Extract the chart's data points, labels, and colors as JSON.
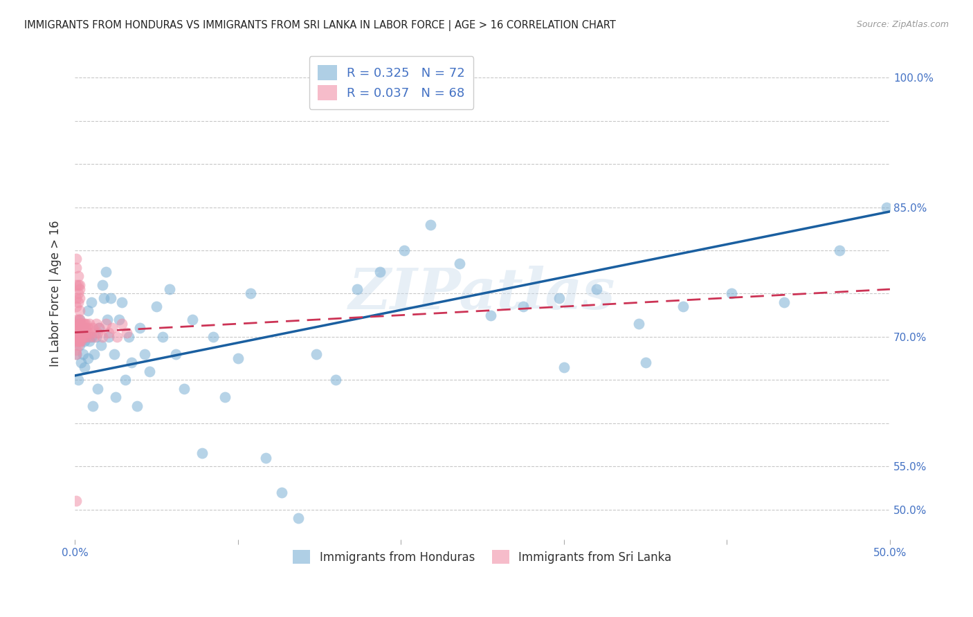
{
  "title": "IMMIGRANTS FROM HONDURAS VS IMMIGRANTS FROM SRI LANKA IN LABOR FORCE | AGE > 16 CORRELATION CHART",
  "source": "Source: ZipAtlas.com",
  "ylabel": "In Labor Force | Age > 16",
  "xlim": [
    0.0,
    0.5
  ],
  "ylim": [
    0.465,
    1.035
  ],
  "series1_name": "Immigrants from Honduras",
  "series1_color": "#7bafd4",
  "series2_name": "Immigrants from Sri Lanka",
  "series2_color": "#f090a8",
  "blue_line_color": "#1a5fa0",
  "pink_line_color": "#cc3355",
  "axis_color": "#4472c4",
  "grid_color": "#c8c8c8",
  "background_color": "#ffffff",
  "watermark": "ZIPatlas",
  "R1": 0.325,
  "N1": 72,
  "R2": 0.037,
  "N2": 68,
  "ytick_positions": [
    0.5,
    0.55,
    0.6,
    0.65,
    0.7,
    0.75,
    0.8,
    0.85,
    0.9,
    0.95,
    1.0
  ],
  "ytick_labels": [
    "50.0%",
    "55.0%",
    "",
    "",
    "70.0%",
    "",
    "",
    "85.0%",
    "",
    "",
    "100.0%"
  ],
  "xtick_positions": [
    0.0,
    0.1,
    0.2,
    0.3,
    0.4,
    0.5
  ],
  "xtick_labels": [
    "0.0%",
    "",
    "",
    "",
    "",
    "50.0%"
  ],
  "honduras_x": [
    0.001,
    0.002,
    0.003,
    0.003,
    0.004,
    0.004,
    0.005,
    0.005,
    0.006,
    0.006,
    0.007,
    0.008,
    0.008,
    0.009,
    0.01,
    0.01,
    0.011,
    0.012,
    0.013,
    0.014,
    0.015,
    0.016,
    0.017,
    0.018,
    0.019,
    0.02,
    0.021,
    0.022,
    0.024,
    0.025,
    0.027,
    0.029,
    0.031,
    0.033,
    0.035,
    0.038,
    0.04,
    0.043,
    0.046,
    0.05,
    0.054,
    0.058,
    0.062,
    0.067,
    0.072,
    0.078,
    0.085,
    0.092,
    0.1,
    0.108,
    0.117,
    0.127,
    0.137,
    0.148,
    0.16,
    0.173,
    0.187,
    0.202,
    0.218,
    0.236,
    0.255,
    0.275,
    0.297,
    0.32,
    0.346,
    0.373,
    0.403,
    0.435,
    0.469,
    0.498,
    0.3,
    0.35
  ],
  "honduras_y": [
    0.68,
    0.65,
    0.72,
    0.69,
    0.67,
    0.71,
    0.68,
    0.71,
    0.695,
    0.665,
    0.7,
    0.73,
    0.675,
    0.695,
    0.7,
    0.74,
    0.62,
    0.68,
    0.7,
    0.64,
    0.71,
    0.69,
    0.76,
    0.745,
    0.775,
    0.72,
    0.7,
    0.745,
    0.68,
    0.63,
    0.72,
    0.74,
    0.65,
    0.7,
    0.67,
    0.62,
    0.71,
    0.68,
    0.66,
    0.735,
    0.7,
    0.755,
    0.68,
    0.64,
    0.72,
    0.565,
    0.7,
    0.63,
    0.675,
    0.75,
    0.56,
    0.52,
    0.49,
    0.68,
    0.65,
    0.755,
    0.775,
    0.8,
    0.83,
    0.785,
    0.725,
    0.735,
    0.745,
    0.755,
    0.715,
    0.735,
    0.75,
    0.74,
    0.8,
    0.85,
    0.665,
    0.67
  ],
  "srilanka_x": [
    0.001,
    0.001,
    0.001,
    0.001,
    0.001,
    0.001,
    0.001,
    0.002,
    0.002,
    0.002,
    0.002,
    0.002,
    0.002,
    0.002,
    0.002,
    0.003,
    0.003,
    0.003,
    0.003,
    0.003,
    0.003,
    0.003,
    0.004,
    0.004,
    0.004,
    0.004,
    0.004,
    0.005,
    0.005,
    0.005,
    0.005,
    0.006,
    0.006,
    0.006,
    0.007,
    0.007,
    0.007,
    0.008,
    0.008,
    0.009,
    0.009,
    0.01,
    0.011,
    0.012,
    0.013,
    0.014,
    0.015,
    0.017,
    0.019,
    0.021,
    0.023,
    0.026,
    0.029,
    0.032,
    0.001,
    0.001,
    0.001,
    0.001,
    0.001,
    0.001,
    0.002,
    0.002,
    0.002,
    0.002,
    0.003,
    0.003,
    0.003,
    0.003
  ],
  "srilanka_y": [
    0.68,
    0.7,
    0.72,
    0.695,
    0.71,
    0.685,
    0.7,
    0.69,
    0.705,
    0.715,
    0.7,
    0.695,
    0.71,
    0.72,
    0.7,
    0.695,
    0.715,
    0.705,
    0.7,
    0.71,
    0.695,
    0.72,
    0.705,
    0.715,
    0.7,
    0.695,
    0.71,
    0.7,
    0.715,
    0.705,
    0.71,
    0.7,
    0.715,
    0.705,
    0.71,
    0.7,
    0.715,
    0.705,
    0.71,
    0.7,
    0.715,
    0.705,
    0.71,
    0.7,
    0.715,
    0.705,
    0.71,
    0.7,
    0.715,
    0.705,
    0.71,
    0.7,
    0.715,
    0.705,
    0.79,
    0.76,
    0.735,
    0.745,
    0.78,
    0.51,
    0.77,
    0.75,
    0.76,
    0.74,
    0.755,
    0.73,
    0.76,
    0.745
  ]
}
